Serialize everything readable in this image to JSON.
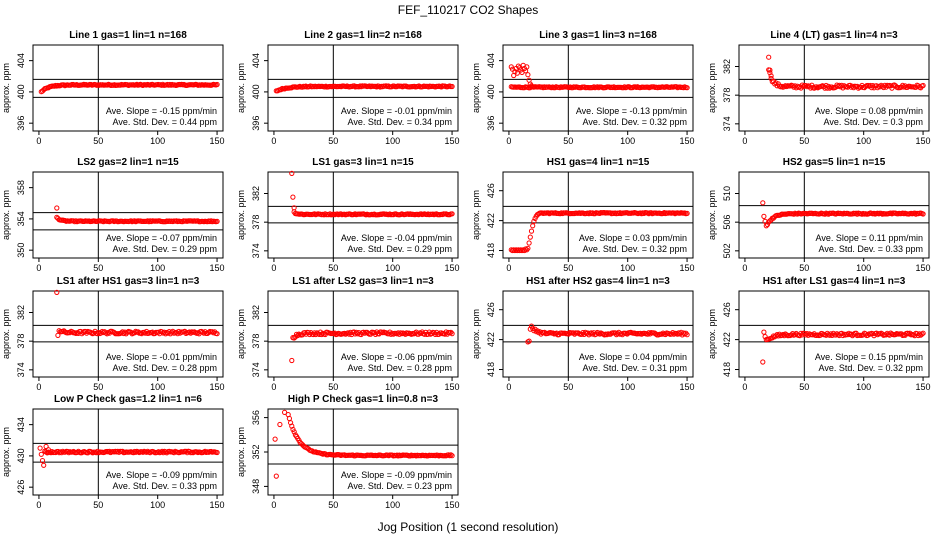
{
  "figure": {
    "title": "FEF_110217  CO2 Shapes",
    "xlabel": "Jog Position (1 second resolution)"
  },
  "chart_data": [
    {
      "type": "scatter",
      "title": "Line 1 gas=1 lin=1 n=168",
      "ylabel": "approx. ppm",
      "xlim": [
        -5,
        155
      ],
      "ylim": [
        395,
        406
      ],
      "xticks": [
        0,
        50,
        100,
        150
      ],
      "yticks": [
        396,
        400,
        404
      ],
      "hlines": [
        401.6,
        399.3
      ],
      "vline": 50,
      "slope_text": "Ave. Slope = -0.15 ppm/min",
      "std_text": "Ave. Std. Dev. = 0.44 ppm",
      "profile": {
        "n": 150,
        "start": 2,
        "end": 150,
        "final": 400.9,
        "amp": -0.9,
        "tau": 6,
        "noise": 0.07,
        "extra": []
      }
    },
    {
      "type": "scatter",
      "title": "Line 2 gas=1 lin=2 n=168",
      "ylabel": "approx. ppm",
      "xlim": [
        -5,
        155
      ],
      "ylim": [
        395,
        406
      ],
      "xticks": [
        0,
        50,
        100,
        150
      ],
      "yticks": [
        396,
        400,
        404
      ],
      "hlines": [
        401.6,
        399.3
      ],
      "vline": 50,
      "slope_text": "Ave. Slope = -0.01 ppm/min",
      "std_text": "Ave. Std. Dev. = 0.34 ppm",
      "profile": {
        "n": 150,
        "start": 2,
        "end": 150,
        "final": 400.7,
        "amp": -0.6,
        "tau": 8,
        "noise": 0.07,
        "extra": []
      }
    },
    {
      "type": "scatter",
      "title": "Line 3 gas=1 lin=3 n=168",
      "ylabel": "approx. ppm",
      "xlim": [
        -5,
        155
      ],
      "ylim": [
        395,
        406
      ],
      "xticks": [
        0,
        50,
        100,
        150
      ],
      "yticks": [
        396,
        400,
        404
      ],
      "hlines": [
        401.6,
        399.3
      ],
      "vline": 50,
      "slope_text": "Ave. Slope = -0.13 ppm/min",
      "std_text": "Ave. Std. Dev. = 0.32 ppm",
      "profile": {
        "n": 150,
        "start": 2,
        "end": 150,
        "final": 400.6,
        "amp": 0,
        "tau": 5,
        "noise": 0.07,
        "extra": [
          [
            2,
            403.2
          ],
          [
            3,
            402.9
          ],
          [
            4,
            402.1
          ],
          [
            5,
            402.6
          ],
          [
            6,
            403.0
          ],
          [
            7,
            402.4
          ],
          [
            8,
            403.3
          ],
          [
            9,
            403.1
          ],
          [
            10,
            402.8
          ],
          [
            11,
            402.5
          ],
          [
            12,
            403.4
          ],
          [
            13,
            403.0
          ],
          [
            14,
            402.7
          ],
          [
            15,
            403.2
          ],
          [
            16,
            402.2
          ],
          [
            17,
            401.5
          ],
          [
            18,
            401.0
          ],
          [
            19,
            400.8
          ]
        ]
      }
    },
    {
      "type": "scatter",
      "title": "Line 4 (LT) gas=1 lin=4 n=3",
      "ylabel": "approx. ppm",
      "xlim": [
        -5,
        155
      ],
      "ylim": [
        373,
        385
      ],
      "xticks": [
        0,
        50,
        100,
        150
      ],
      "yticks": [
        374,
        378,
        382
      ],
      "hlines": [
        380.2,
        377.9
      ],
      "vline": 50,
      "slope_text": "Ave. Slope = 0.08 ppm/min",
      "std_text": "Ave. Std. Dev. = 0.3 ppm",
      "profile": {
        "n": 130,
        "start": 20,
        "end": 150,
        "final": 379.2,
        "amp": 2.5,
        "tau": 3,
        "noise": 0.22,
        "extra": [
          [
            20,
            383.3
          ],
          [
            21,
            381.5
          ],
          [
            22,
            380.7
          ]
        ]
      }
    },
    {
      "type": "scatter",
      "title": "LS2 gas=2 lin=1 n=15",
      "ylabel": "approx. ppm",
      "xlim": [
        -5,
        155
      ],
      "ylim": [
        349,
        360
      ],
      "xticks": [
        0,
        50,
        100,
        150
      ],
      "yticks": [
        350,
        354,
        358
      ],
      "hlines": [
        354.8,
        352.6
      ],
      "vline": 50,
      "slope_text": "Ave. Slope = -0.07 ppm/min",
      "std_text": "Ave. Std. Dev. = 0.29 ppm",
      "profile": {
        "n": 135,
        "start": 15,
        "end": 150,
        "final": 353.7,
        "amp": 0.5,
        "tau": 3,
        "noise": 0.06,
        "extra": [
          [
            15,
            355.4
          ]
        ]
      }
    },
    {
      "type": "scatter",
      "title": "LS1 gas=3 lin=1 n=15",
      "ylabel": "approx. ppm",
      "xlim": [
        -5,
        155
      ],
      "ylim": [
        373,
        385
      ],
      "xticks": [
        0,
        50,
        100,
        150
      ],
      "yticks": [
        374,
        378,
        382
      ],
      "hlines": [
        380.2,
        377.9
      ],
      "vline": 50,
      "slope_text": "Ave. Slope = -0.04 ppm/min",
      "std_text": "Ave. Std. Dev. = 0.29 ppm",
      "profile": {
        "n": 133,
        "start": 17,
        "end": 150,
        "final": 379.1,
        "amp": 0.3,
        "tau": 2,
        "noise": 0.07,
        "extra": [
          [
            15,
            384.8
          ],
          [
            16,
            381.5
          ],
          [
            17,
            380.0
          ]
        ]
      }
    },
    {
      "type": "scatter",
      "title": "HS1 gas=4 lin=1 n=15",
      "ylabel": "approx. ppm",
      "xlim": [
        -5,
        155
      ],
      "ylim": [
        417,
        428.5
      ],
      "xticks": [
        0,
        50,
        100,
        150
      ],
      "yticks": [
        418,
        422,
        426
      ],
      "hlines": [
        423.9,
        421.7
      ],
      "vline": 50,
      "slope_text": "Ave. Slope = 0.03 ppm/min",
      "std_text": "Ave. Std. Dev. = 0.32 ppm",
      "profile": {
        "n": 123,
        "start": 27,
        "end": 150,
        "final": 423.0,
        "amp": 0,
        "tau": 3,
        "noise": 0.07,
        "extra": [
          [
            2,
            418.1
          ],
          [
            3,
            418.0
          ],
          [
            4,
            418.1
          ],
          [
            5,
            418.0
          ],
          [
            6,
            418.1
          ],
          [
            7,
            418.0
          ],
          [
            8,
            418.1
          ],
          [
            9,
            418.0
          ],
          [
            10,
            418.1
          ],
          [
            11,
            418.0
          ],
          [
            12,
            418.1
          ],
          [
            13,
            418.0
          ],
          [
            14,
            418.2
          ],
          [
            15,
            418.1
          ],
          [
            16,
            418.3
          ],
          [
            17,
            419.0
          ],
          [
            18,
            419.8
          ],
          [
            19,
            420.6
          ],
          [
            20,
            421.3
          ],
          [
            21,
            421.9
          ],
          [
            22,
            422.3
          ],
          [
            23,
            422.6
          ],
          [
            24,
            422.8
          ],
          [
            25,
            422.9
          ],
          [
            26,
            423.0
          ]
        ]
      }
    },
    {
      "type": "scatter",
      "title": "HS2 gas=5 lin=1 n=15",
      "ylabel": "approx. ppm",
      "xlim": [
        -5,
        155
      ],
      "ylim": [
        501,
        513
      ],
      "xticks": [
        0,
        50,
        100,
        150
      ],
      "yticks": [
        502,
        506,
        510
      ],
      "hlines": [
        508.3,
        505.9
      ],
      "vline": 50,
      "slope_text": "Ave. Slope = 0.11 ppm/min",
      "std_text": "Ave. Std. Dev. = 0.33 ppm",
      "profile": {
        "n": 131,
        "start": 19,
        "end": 150,
        "final": 507.2,
        "amp": -1.5,
        "tau": 5,
        "noise": 0.08,
        "extra": [
          [
            15,
            508.7
          ],
          [
            16,
            506.8
          ],
          [
            17,
            506.1
          ],
          [
            18,
            505.5
          ]
        ]
      }
    },
    {
      "type": "scatter",
      "title": "LS1 after HS1 gas=3 lin=1 n=3",
      "ylabel": "approx. ppm",
      "xlim": [
        -5,
        155
      ],
      "ylim": [
        373,
        385
      ],
      "xticks": [
        0,
        50,
        100,
        150
      ],
      "yticks": [
        374,
        378,
        382
      ],
      "hlines": [
        380.2,
        377.9
      ],
      "vline": 50,
      "slope_text": "Ave. Slope = -0.01 ppm/min",
      "std_text": "Ave. Std. Dev. = 0.28 ppm",
      "profile": {
        "n": 133,
        "start": 17,
        "end": 150,
        "final": 379.2,
        "amp": 0.3,
        "tau": 3,
        "noise": 0.18,
        "extra": [
          [
            15,
            384.8
          ],
          [
            16,
            378.8
          ]
        ]
      }
    },
    {
      "type": "scatter",
      "title": "LS1 after LS2 gas=3 lin=1 n=3",
      "ylabel": "approx. ppm",
      "xlim": [
        -5,
        155
      ],
      "ylim": [
        373,
        385
      ],
      "xticks": [
        0,
        50,
        100,
        150
      ],
      "yticks": [
        374,
        378,
        382
      ],
      "hlines": [
        380.2,
        377.9
      ],
      "vline": 50,
      "slope_text": "Ave. Slope = -0.06 ppm/min",
      "std_text": "Ave. Std. Dev. = 0.28 ppm",
      "profile": {
        "n": 133,
        "start": 17,
        "end": 150,
        "final": 379.1,
        "amp": -0.5,
        "tau": 3,
        "noise": 0.18,
        "extra": [
          [
            15,
            375.3
          ],
          [
            16,
            378.5
          ]
        ]
      }
    },
    {
      "type": "scatter",
      "title": "HS1 after HS2 gas=4 lin=1 n=3",
      "ylabel": "approx. ppm",
      "xlim": [
        -5,
        155
      ],
      "ylim": [
        417,
        428.5
      ],
      "xticks": [
        0,
        50,
        100,
        150
      ],
      "yticks": [
        418,
        422,
        426
      ],
      "hlines": [
        423.9,
        421.7
      ],
      "vline": 50,
      "slope_text": "Ave. Slope = 0.04 ppm/min",
      "std_text": "Ave. Std. Dev. = 0.31 ppm",
      "profile": {
        "n": 128,
        "start": 22,
        "end": 150,
        "final": 422.8,
        "amp": 0.6,
        "tau": 3,
        "noise": 0.17,
        "extra": [
          [
            16,
            421.7
          ],
          [
            17,
            421.8
          ],
          [
            18,
            423.4
          ],
          [
            19,
            423.8
          ],
          [
            20,
            423.5
          ],
          [
            21,
            423.2
          ]
        ]
      }
    },
    {
      "type": "scatter",
      "title": "HS1 after LS1 gas=4 lin=1 n=3",
      "ylabel": "approx. ppm",
      "xlim": [
        -5,
        155
      ],
      "ylim": [
        417,
        428.5
      ],
      "xticks": [
        0,
        50,
        100,
        150
      ],
      "yticks": [
        418,
        422,
        426
      ],
      "hlines": [
        423.9,
        421.7
      ],
      "vline": 50,
      "slope_text": "Ave. Slope = 0.15 ppm/min",
      "std_text": "Ave. Std. Dev. = 0.32 ppm",
      "profile": {
        "n": 131,
        "start": 19,
        "end": 150,
        "final": 422.7,
        "amp": -0.7,
        "tau": 6,
        "noise": 0.17,
        "extra": [
          [
            15,
            419.0
          ],
          [
            16,
            423.0
          ],
          [
            17,
            422.4
          ],
          [
            18,
            422.0
          ]
        ]
      }
    },
    {
      "type": "scatter",
      "title": "Low P Check gas=1.2 lin=1 n=6",
      "ylabel": "approx. ppm",
      "xlim": [
        -5,
        155
      ],
      "ylim": [
        425,
        436
      ],
      "xticks": [
        0,
        50,
        100,
        150
      ],
      "yticks": [
        426,
        430,
        434
      ],
      "hlines": [
        431.6,
        429.2
      ],
      "vline": 50,
      "slope_text": "Ave. Slope = -0.09 ppm/min",
      "std_text": "Ave. Std. Dev. = 0.33 ppm",
      "profile": {
        "n": 145,
        "start": 5,
        "end": 150,
        "final": 430.5,
        "amp": 0,
        "tau": 3,
        "noise": 0.1,
        "extra": [
          [
            1,
            431.0
          ],
          [
            2,
            430.2
          ],
          [
            3,
            429.4
          ],
          [
            4,
            428.8
          ],
          [
            5,
            430.6
          ],
          [
            6,
            431.2
          ],
          [
            7,
            430.4
          ],
          [
            8,
            430.8
          ]
        ]
      }
    },
    {
      "type": "scatter",
      "title": "High P Check gas=1 lin=0.8 n=3",
      "ylabel": "approx. ppm",
      "xlim": [
        -5,
        155
      ],
      "ylim": [
        347,
        357
      ],
      "xticks": [
        0,
        50,
        100,
        150
      ],
      "yticks": [
        348,
        352,
        356
      ],
      "hlines": [
        352.8,
        350.6
      ],
      "vline": 50,
      "slope_text": "Ave. Slope = -0.09 ppm/min",
      "std_text": "Ave. Std. Dev. = 0.23 ppm",
      "profile": {
        "n": 138,
        "start": 12,
        "end": 150,
        "final": 351.6,
        "amp": 4.8,
        "tau": 9,
        "noise": 0.06,
        "extra": [
          [
            1,
            353.5
          ],
          [
            2,
            349.2
          ],
          [
            5,
            355.2
          ],
          [
            9,
            356.6
          ]
        ]
      }
    }
  ]
}
